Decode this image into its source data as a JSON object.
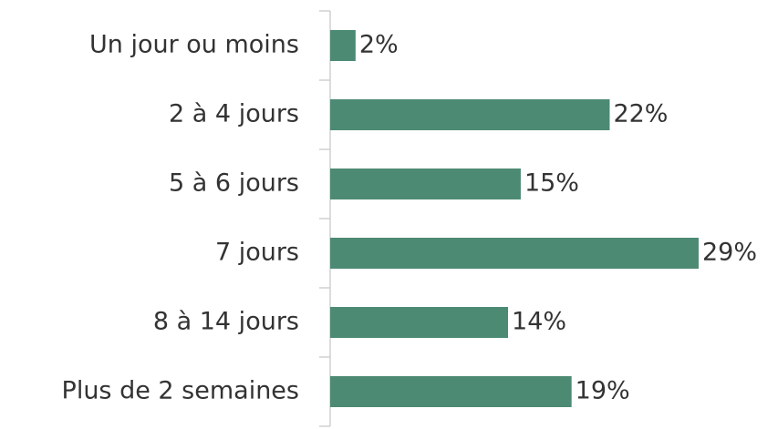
{
  "chart_data": {
    "type": "hbar",
    "categories": [
      "Un jour ou moins",
      "2 à 4 jours",
      "5 à 6 jours",
      "7 jours",
      "8 à 14 jours",
      "Plus de 2 semaines"
    ],
    "values": [
      2,
      22,
      15,
      29,
      14,
      19
    ],
    "value_labels": [
      "2%",
      "22%",
      "15%",
      "29%",
      "14%",
      "19%"
    ],
    "color": "#4d8a74"
  }
}
